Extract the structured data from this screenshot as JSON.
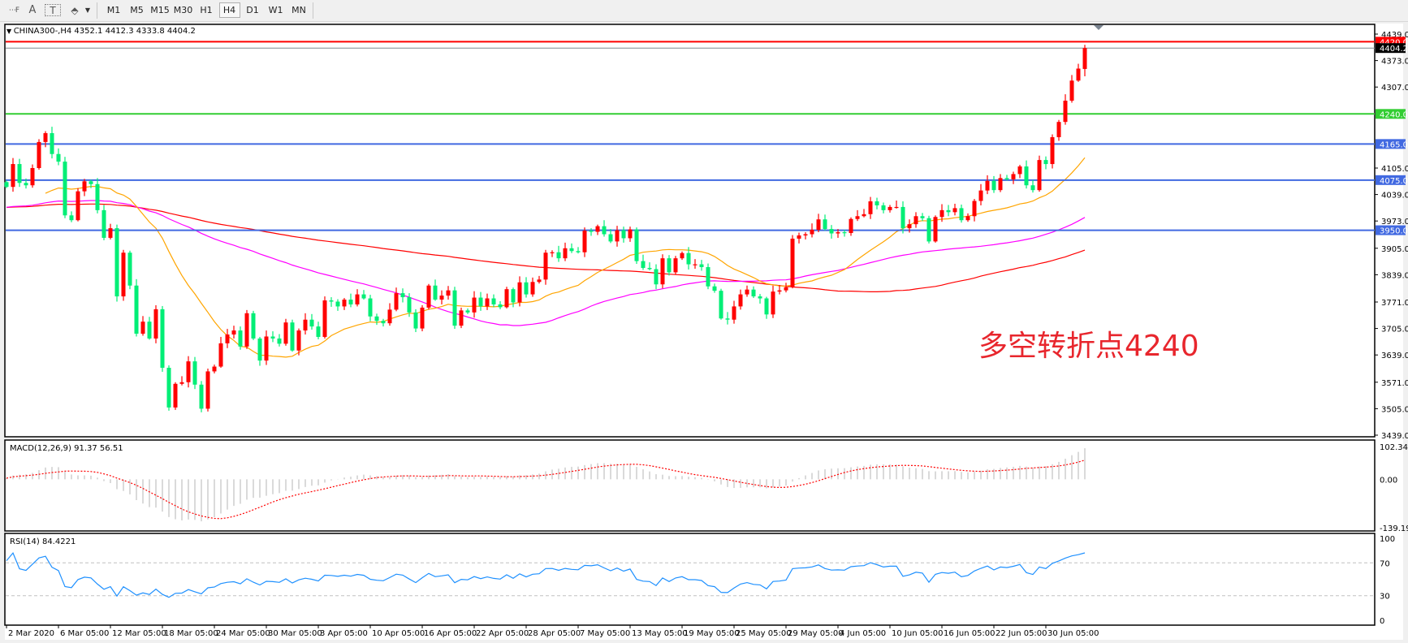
{
  "toolbar": {
    "tools": [
      {
        "name": "grid-tool",
        "glyph": "⋯F"
      },
      {
        "name": "text-tool",
        "glyph": "A"
      },
      {
        "name": "text-label-tool",
        "glyph": "T"
      },
      {
        "name": "arrows-tool",
        "glyph": "⬘"
      }
    ],
    "timeframes": [
      "M1",
      "M5",
      "M15",
      "M30",
      "H1",
      "H4",
      "D1",
      "W1",
      "MN"
    ],
    "active_timeframe": "H4"
  },
  "chart_header": "CHINA300-,H4  4352.1 4412.3 4333.8 4404.2",
  "annotation": "多空转折点4240",
  "colors": {
    "bull": "#ff0000",
    "bear": "#00ee76",
    "ma_fast": "#ffa500",
    "ma_mid": "#ff00ff",
    "ma_slow": "#ff0000",
    "level_red": "#ff0000",
    "level_green": "#32cd32",
    "level_blue": "#4169e1",
    "current_price": "#808890",
    "rsi": "#1e90ff",
    "macd_hist": "#c0c0c0",
    "macd_signal": "#ff0000",
    "annotation": "#e8262d"
  },
  "chart_data": {
    "type": "candlestick",
    "symbol": "CHINA300-",
    "timeframe": "H4",
    "last_bar": {
      "open": 4352.1,
      "high": 4412.3,
      "low": 4333.8,
      "close": 4404.2
    },
    "ylim": [
      3439,
      4439
    ],
    "price_ticks": [
      "4439.0",
      "4373.0",
      "4307.0",
      "4105.0",
      "4039.0",
      "3973.0",
      "3905.0",
      "3839.0",
      "3771.0",
      "3705.0",
      "3639.0",
      "3571.0",
      "3505.0",
      "3439.0"
    ],
    "levels": [
      {
        "value": 4420.0,
        "label": "4420.0",
        "color": "#ff0000",
        "label_bg": "#ff0000"
      },
      {
        "value": 4404.2,
        "label": "4404.2",
        "color": "#808890",
        "label_bg": "#000000"
      },
      {
        "value": 4240.0,
        "label": "4240.0",
        "color": "#32cd32",
        "label_bg": "#32cd32"
      },
      {
        "value": 4165.0,
        "label": "4165.0",
        "color": "#4169e1",
        "label_bg": "#4169e1"
      },
      {
        "value": 4075.0,
        "label": "4075.0",
        "color": "#4169e1",
        "label_bg": "#4169e1"
      },
      {
        "value": 3950.0,
        "label": "3950.0",
        "color": "#4169e1",
        "label_bg": "#4169e1"
      }
    ],
    "closes": [
      4058,
      4115,
      4068,
      4062,
      4105,
      4170,
      4192,
      4140,
      4121,
      3987,
      3975,
      4047,
      4072,
      4065,
      4000,
      3931,
      3955,
      3785,
      3894,
      3812,
      3692,
      3722,
      3680,
      3753,
      3607,
      3508,
      3567,
      3571,
      3623,
      3565,
      3505,
      3598,
      3610,
      3668,
      3690,
      3700,
      3660,
      3743,
      3680,
      3625,
      3685,
      3680,
      3667,
      3720,
      3650,
      3700,
      3727,
      3710,
      3684,
      3775,
      3772,
      3760,
      3777,
      3765,
      3790,
      3780,
      3735,
      3724,
      3718,
      3752,
      3793,
      3783,
      3745,
      3705,
      3757,
      3812,
      3777,
      3787,
      3800,
      3712,
      3750,
      3745,
      3782,
      3760,
      3780,
      3765,
      3758,
      3803,
      3770,
      3820,
      3790,
      3821,
      3827,
      3894,
      3895,
      3880,
      3905,
      3898,
      3895,
      3949,
      3946,
      3960,
      3940,
      3922,
      3950,
      3930,
      3952,
      3873,
      3856,
      3853,
      3815,
      3880,
      3845,
      3880,
      3893,
      3865,
      3865,
      3858,
      3810,
      3799,
      3730,
      3727,
      3760,
      3790,
      3802,
      3785,
      3780,
      3740,
      3797,
      3800,
      3808,
      3929,
      3937,
      3940,
      3951,
      3977,
      3953,
      3942,
      3945,
      3943,
      3978,
      3985,
      3990,
      4022,
      4012,
      4000,
      4008,
      4008,
      3955,
      3965,
      3985,
      3980,
      3922,
      3983,
      4000,
      3995,
      4005,
      3975,
      3985,
      4023,
      4049,
      4073,
      4050,
      4080,
      4077,
      4090,
      4109,
      4062,
      4050,
      4125,
      4115,
      4182,
      4220,
      4273,
      4323,
      4353,
      4404.2
    ],
    "time_labels": [
      "2 Mar 2020",
      "6 Mar 05:00",
      "12 Mar 05:00",
      "18 Mar 05:00",
      "24 Mar 05:00",
      "30 Mar 05:00",
      "3 Apr 05:00",
      "10 Apr 05:00",
      "16 Apr 05:00",
      "22 Apr 05:00",
      "28 Apr 05:00",
      "7 May 05:00",
      "13 May 05:00",
      "19 May 05:00",
      "25 May 05:00",
      "29 May 05:00",
      "4 Jun 05:00",
      "10 Jun 05:00",
      "16 Jun 05:00",
      "22 Jun 05:00",
      "30 Jun 05:00"
    ],
    "macd": {
      "label": "MACD(12,26,9) 91.37 56.51",
      "ylim": [
        -139.19,
        102.34
      ],
      "ticks": [
        "102.34",
        "0.00",
        "-139.19"
      ]
    },
    "rsi": {
      "label": "RSI(14) 84.4221",
      "ylim": [
        0,
        100
      ],
      "ticks": [
        "100",
        "70",
        "30",
        "0"
      ],
      "levels": [
        70,
        30
      ]
    }
  }
}
